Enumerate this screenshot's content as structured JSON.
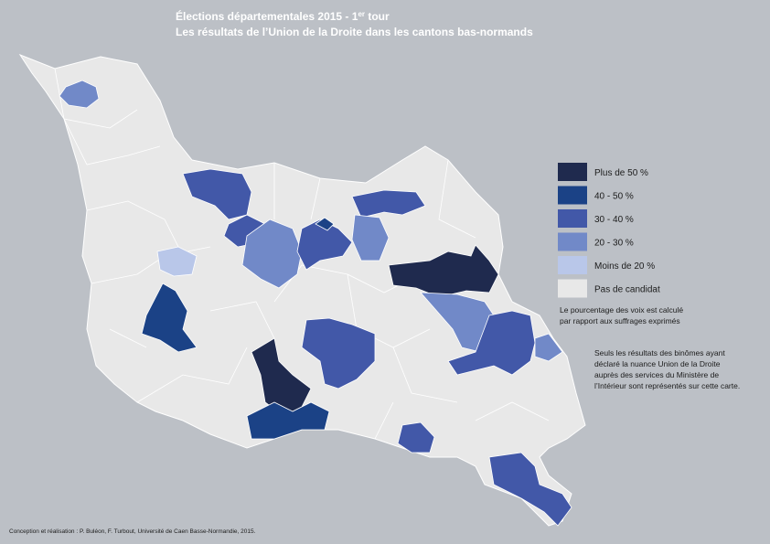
{
  "title": {
    "line1": "Élections départementales 2015 - 1",
    "line1_sup": "er",
    "line1_end": " tour",
    "line2": "Les résultats de l’Union de la Droite dans les cantons bas-normands"
  },
  "legend": [
    {
      "label": "Plus de 50 %",
      "color": "#1f2a4e"
    },
    {
      "label": "40 - 50 %",
      "color": "#1b4286"
    },
    {
      "label": "30 - 40 %",
      "color": "#4258a8"
    },
    {
      "label": "20 - 30 %",
      "color": "#7189c8"
    },
    {
      "label": "Moins de 20 %",
      "color": "#b9c7e9"
    },
    {
      "label": "Pas de candidat",
      "color": "#e8e8e8"
    }
  ],
  "note1": [
    "Le pourcentage des voix est calculé",
    "par rapport aux suffrages exprimés"
  ],
  "note2": [
    "Seuls les résultats des binômes ayant",
    "déclaré la nuance Union de la Droite",
    "auprès des services du Ministère de",
    "l’Intérieur sont représentés sur cette carte."
  ],
  "credit": "Conception et réalisation : P. Buléon, F. Turbout, Université de Caen Basse-Normandie, 2015."
}
